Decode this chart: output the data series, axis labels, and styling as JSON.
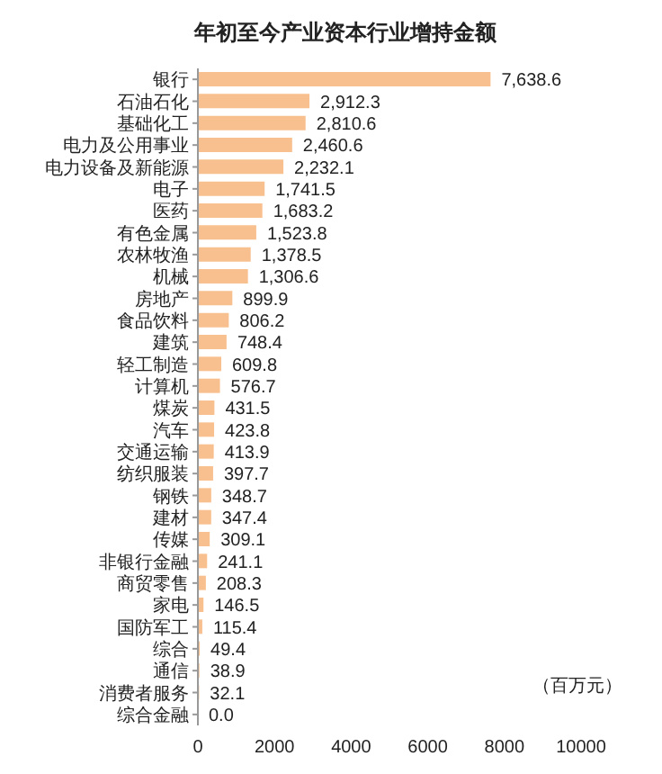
{
  "chart_data": {
    "type": "bar",
    "orientation": "horizontal",
    "title": "年初至今产业资本行业增持金额",
    "categories": [
      "银行",
      "石油石化",
      "基础化工",
      "电力及公用事业",
      "电力设备及新能源",
      "电子",
      "医药",
      "有色金属",
      "农林牧渔",
      "机械",
      "房地产",
      "食品饮料",
      "建筑",
      "轻工制造",
      "计算机",
      "煤炭",
      "汽车",
      "交通运输",
      "纺织服装",
      "钢铁",
      "建材",
      "传媒",
      "非银行金融",
      "商贸零售",
      "家电",
      "国防军工",
      "综合",
      "通信",
      "消费者服务",
      "综合金融"
    ],
    "values": [
      7638.6,
      2912.3,
      2810.6,
      2460.6,
      2232.1,
      1741.5,
      1683.2,
      1523.8,
      1378.5,
      1306.6,
      899.9,
      806.2,
      748.4,
      609.8,
      576.7,
      431.5,
      423.8,
      413.9,
      397.7,
      348.7,
      347.4,
      309.1,
      241.1,
      208.3,
      146.5,
      115.4,
      49.4,
      38.9,
      32.1,
      0.0
    ],
    "value_labels": [
      "7,638.6",
      "2,912.3",
      "2,810.6",
      "2,460.6",
      "2,232.1",
      "1,741.5",
      "1,683.2",
      "1,523.8",
      "1,378.5",
      "1,306.6",
      "899.9",
      "806.2",
      "748.4",
      "609.8",
      "576.7",
      "431.5",
      "423.8",
      "413.9",
      "397.7",
      "348.7",
      "347.4",
      "309.1",
      "241.1",
      "208.3",
      "146.5",
      "115.4",
      "49.4",
      "38.9",
      "32.1",
      "0.0"
    ],
    "color": "#f9c08f",
    "xlim": [
      0,
      10000
    ],
    "xticks": [
      0,
      2000,
      4000,
      6000,
      8000,
      10000
    ],
    "grid": false,
    "annotations": [
      "（百万元）"
    ]
  }
}
